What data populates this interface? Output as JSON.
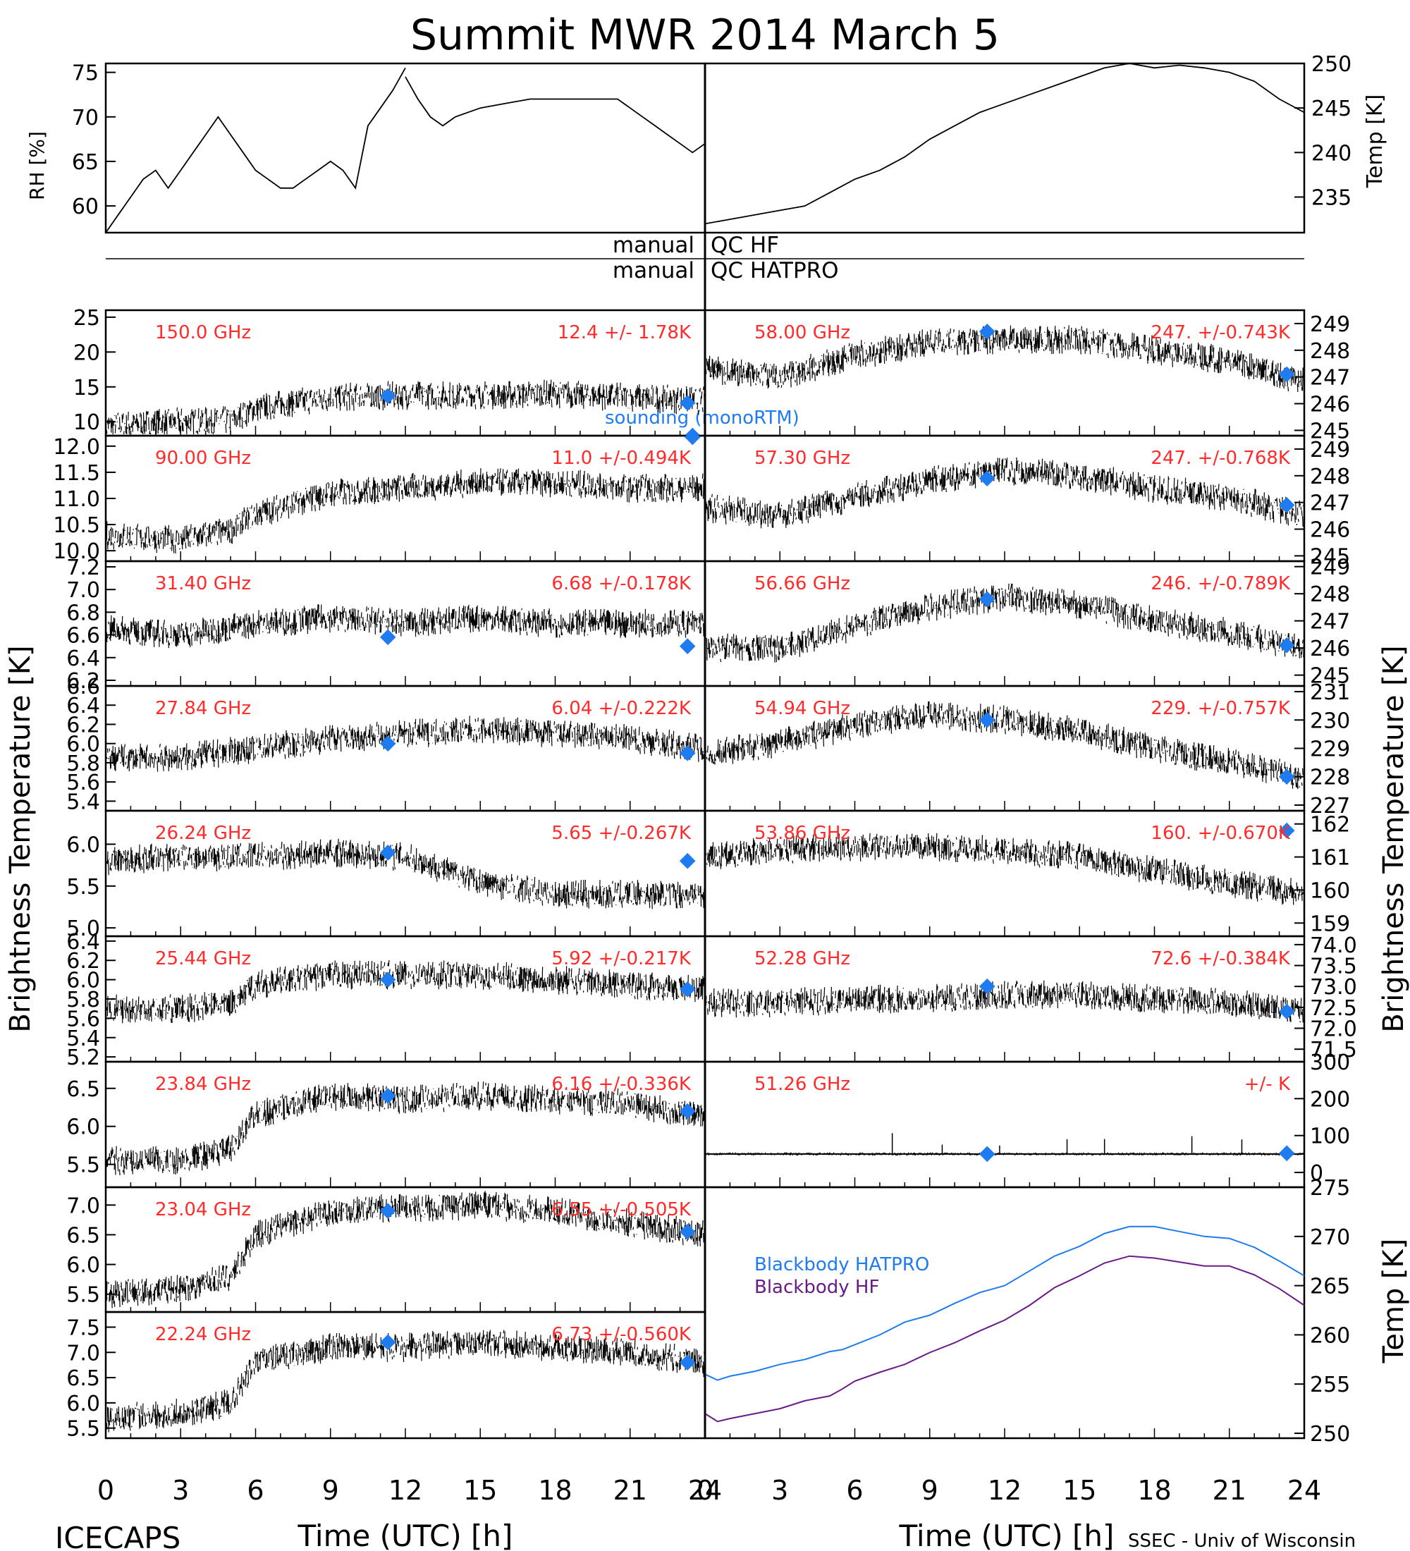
{
  "title": "Summit MWR 2014 March  5",
  "footer": {
    "left": "ICECAPS",
    "right": "SSEC - Univ of Wisconsin"
  },
  "colors": {
    "label": "#ff2a2a",
    "sounding": "#1f7cf0",
    "hatpro": "#1f7cf0",
    "hf": "#6b1a8a",
    "data": "#000000"
  },
  "qc": {
    "label_left": "manual",
    "row1": "QC HF",
    "row2": "QC HATPRO"
  },
  "axes": {
    "left_ylabel": "Brightness Temperature [K]",
    "right_ylabel": "Brightness Temperature [K]",
    "xlabel": "Time (UTC) [h]",
    "xticks": [
      "0",
      "3",
      "6",
      "9",
      "12",
      "15",
      "18",
      "21",
      "24"
    ]
  },
  "legend": {
    "sounding": "sounding (monoRTM)",
    "bb_hatpro": "Blackbody HATPRO",
    "bb_hf": "Blackbody HF"
  },
  "chart_data": [
    {
      "type": "line",
      "panel": "rh",
      "ylabel": "RH [%]",
      "ylim": [
        57,
        76
      ],
      "yticks": [
        "60",
        "65",
        "70",
        "75"
      ],
      "xlim": [
        0,
        12
      ],
      "series": [
        {
          "x": [
            0,
            0.5,
            1,
            1.5,
            2,
            2.5,
            3,
            3.5,
            4,
            4.5,
            5,
            5.5,
            6,
            6.5,
            7,
            7.5,
            8,
            8.5,
            9,
            9.5,
            10,
            10.5,
            11,
            11.5,
            12
          ],
          "y": [
            57,
            59,
            61,
            63,
            64,
            62,
            64,
            66,
            68,
            70,
            68,
            66,
            64,
            63,
            62,
            62,
            63,
            64,
            65,
            64,
            62,
            69,
            71,
            73,
            75.5
          ]
        }
      ]
    },
    {
      "type": "line",
      "panel": "rh2",
      "ylabel": "",
      "ylim": [
        57,
        76
      ],
      "xlim": [
        12,
        24
      ],
      "series": [
        {
          "x": [
            12,
            12.5,
            13,
            13.5,
            14,
            15,
            16,
            17,
            18,
            19,
            20,
            20.5,
            21,
            21.5,
            22,
            22.5,
            23,
            23.5,
            24
          ],
          "y": [
            74.5,
            72,
            70,
            69,
            70,
            71,
            71.5,
            72,
            72,
            72,
            72,
            72,
            71,
            70,
            69,
            68,
            67,
            66,
            67
          ]
        }
      ]
    },
    {
      "type": "line",
      "panel": "temp",
      "ylabel": "Temp [K]",
      "ylim": [
        231,
        250
      ],
      "yticks": [
        "235",
        "240",
        "245",
        "250"
      ],
      "xlim": [
        0,
        24
      ],
      "series": [
        {
          "x": [
            0,
            1,
            2,
            3,
            4,
            5,
            6,
            7,
            8,
            9,
            10,
            11,
            12,
            13,
            14,
            15,
            16,
            17,
            18,
            19,
            20,
            21,
            22,
            23,
            24
          ],
          "y": [
            232,
            232.5,
            233,
            233.5,
            234,
            235.5,
            237,
            238,
            239.5,
            241.5,
            243,
            244.5,
            245.5,
            246.5,
            247.5,
            248.5,
            249.5,
            250,
            249.5,
            249.8,
            249.5,
            249,
            248,
            246,
            244.5
          ]
        }
      ]
    },
    {
      "type": "scatter",
      "panel": "c150",
      "label": "150.0 GHz",
      "stats": "12.4 +/-  1.78K",
      "ylim": [
        8,
        26
      ],
      "yticks": [
        "10",
        "15",
        "20",
        "25"
      ],
      "x": [
        0,
        3,
        5,
        6,
        9,
        12,
        15,
        18,
        21,
        24
      ],
      "y": [
        9.5,
        10,
        10.2,
        12,
        13.5,
        13.8,
        13.8,
        14,
        13.5,
        13
      ],
      "sounding": [
        {
          "x": 11.3,
          "y": 13.7
        },
        {
          "x": 23.3,
          "y": 12.7
        },
        {
          "x": 23.5,
          "y": 7.5
        }
      ]
    },
    {
      "type": "scatter",
      "panel": "c90",
      "label": "90.00 GHz",
      "stats": "11.0 +/-0.494K",
      "ylim": [
        9.8,
        12.2
      ],
      "yticks": [
        "10.0",
        "10.5",
        "11.0",
        "11.5",
        "12.0"
      ],
      "x": [
        0,
        3,
        5,
        6,
        9,
        12,
        15,
        18,
        21,
        24
      ],
      "y": [
        10.3,
        10.2,
        10.4,
        10.7,
        11.1,
        11.2,
        11.3,
        11.3,
        11.2,
        11.2
      ],
      "sounding": [
        {
          "x": 23.5,
          "y": 12.2
        }
      ]
    },
    {
      "type": "scatter",
      "panel": "c31",
      "label": "31.40 GHz",
      "stats": "6.68 +/-0.178K",
      "ylim": [
        6.15,
        7.25
      ],
      "yticks": [
        "6.2",
        "6.4",
        "6.6",
        "6.8",
        "7.0",
        "7.2"
      ],
      "x": [
        0,
        3,
        6,
        9,
        12,
        15,
        18,
        21,
        24
      ],
      "y": [
        6.65,
        6.6,
        6.7,
        6.75,
        6.7,
        6.75,
        6.7,
        6.7,
        6.7
      ],
      "sounding": [
        {
          "x": 11.3,
          "y": 6.58
        },
        {
          "x": 23.3,
          "y": 6.5
        }
      ]
    },
    {
      "type": "scatter",
      "panel": "c27",
      "label": "27.84 GHz",
      "stats": "6.04 +/-0.222K",
      "ylim": [
        5.3,
        6.6
      ],
      "yticks": [
        "5.4",
        "5.6",
        "5.8",
        "6.0",
        "6.2",
        "6.4",
        "6.6"
      ],
      "x": [
        0,
        3,
        6,
        9,
        12,
        15,
        18,
        21,
        24
      ],
      "y": [
        5.85,
        5.85,
        5.95,
        6.05,
        6.1,
        6.15,
        6.1,
        6.05,
        5.95
      ],
      "sounding": [
        {
          "x": 11.3,
          "y": 6.0
        },
        {
          "x": 23.3,
          "y": 5.9
        }
      ]
    },
    {
      "type": "scatter",
      "panel": "c26",
      "label": "26.24 GHz",
      "stats": "5.65 +/-0.267K",
      "ylim": [
        4.9,
        6.4
      ],
      "yticks": [
        "5.0",
        "5.5",
        "6.0"
      ],
      "x": [
        0,
        3,
        6,
        9,
        12,
        15,
        18,
        21,
        24
      ],
      "y": [
        5.8,
        5.85,
        5.85,
        5.9,
        5.85,
        5.55,
        5.4,
        5.4,
        5.4
      ],
      "sounding": [
        {
          "x": 11.3,
          "y": 5.9
        },
        {
          "x": 23.3,
          "y": 5.8
        }
      ]
    },
    {
      "type": "scatter",
      "panel": "c25",
      "label": "25.44 GHz",
      "stats": "5.92 +/-0.217K",
      "ylim": [
        5.15,
        6.45
      ],
      "yticks": [
        "5.2",
        "5.4",
        "5.6",
        "5.8",
        "6.0",
        "6.2",
        "6.4"
      ],
      "x": [
        0,
        3,
        5,
        6,
        9,
        12,
        15,
        18,
        21,
        24
      ],
      "y": [
        5.7,
        5.7,
        5.75,
        5.95,
        6.05,
        6.05,
        6.05,
        6.0,
        5.95,
        5.9
      ],
      "sounding": [
        {
          "x": 11.3,
          "y": 6.0
        },
        {
          "x": 23.3,
          "y": 5.9
        }
      ]
    },
    {
      "type": "scatter",
      "panel": "c23a",
      "label": "23.84 GHz",
      "stats": "6.16 +/-0.336K",
      "ylim": [
        5.2,
        6.85
      ],
      "yticks": [
        "5.5",
        "6.0",
        "6.5"
      ],
      "x": [
        0,
        3,
        5,
        6,
        9,
        12,
        15,
        18,
        21,
        24
      ],
      "y": [
        5.55,
        5.55,
        5.7,
        6.15,
        6.4,
        6.35,
        6.4,
        6.35,
        6.3,
        6.1
      ],
      "sounding": [
        {
          "x": 11.3,
          "y": 6.4
        },
        {
          "x": 23.3,
          "y": 6.2
        }
      ]
    },
    {
      "type": "scatter",
      "panel": "c23b",
      "label": "23.04 GHz",
      "stats": "6.55 +/-0.505K",
      "ylim": [
        5.2,
        7.3
      ],
      "yticks": [
        "5.5",
        "6.0",
        "6.5",
        "7.0"
      ],
      "x": [
        0,
        3,
        5,
        6,
        9,
        12,
        15,
        18,
        21,
        24
      ],
      "y": [
        5.5,
        5.6,
        5.8,
        6.5,
        6.9,
        6.95,
        7.0,
        6.9,
        6.7,
        6.5
      ],
      "sounding": [
        {
          "x": 11.3,
          "y": 6.9
        },
        {
          "x": 23.3,
          "y": 6.55
        }
      ]
    },
    {
      "type": "scatter",
      "panel": "c22",
      "label": "22.24 GHz",
      "stats": "6.73 +/-0.560K",
      "ylim": [
        5.3,
        7.8
      ],
      "yticks": [
        "5.5",
        "6.0",
        "6.5",
        "7.0",
        "7.5"
      ],
      "x": [
        0,
        3,
        5,
        6,
        9,
        12,
        15,
        18,
        21,
        24
      ],
      "y": [
        5.7,
        5.8,
        6.0,
        6.8,
        7.1,
        7.1,
        7.2,
        7.1,
        7.0,
        6.8
      ],
      "sounding": [
        {
          "x": 11.3,
          "y": 7.2
        },
        {
          "x": 23.3,
          "y": 6.8
        }
      ]
    },
    {
      "type": "scatter",
      "panel": "c58",
      "label": "58.00 GHz",
      "stats": "247. +/-0.743K",
      "ylim": [
        244.8,
        249.5
      ],
      "yticks": [
        "245",
        "246",
        "247",
        "248",
        "249"
      ],
      "x": [
        0,
        3,
        6,
        9,
        12,
        15,
        18,
        21,
        24
      ],
      "y": [
        247.3,
        247.0,
        247.8,
        248.3,
        248.4,
        248.4,
        248.0,
        247.6,
        246.8
      ],
      "sounding": [
        {
          "x": 11.3,
          "y": 248.7
        },
        {
          "x": 23.3,
          "y": 247.1
        }
      ]
    },
    {
      "type": "scatter",
      "panel": "c57",
      "label": "57.30 GHz",
      "stats": "247. +/-0.768K",
      "ylim": [
        244.8,
        249.5
      ],
      "yticks": [
        "245",
        "246",
        "247",
        "248",
        "249"
      ],
      "x": [
        0,
        3,
        6,
        9,
        12,
        15,
        18,
        21,
        24
      ],
      "y": [
        246.8,
        246.5,
        247.2,
        247.8,
        248.2,
        248.0,
        247.5,
        247.2,
        246.5
      ],
      "sounding": [
        {
          "x": 11.3,
          "y": 247.9
        },
        {
          "x": 23.3,
          "y": 246.9
        }
      ]
    },
    {
      "type": "scatter",
      "panel": "c56",
      "label": "56.66 GHz",
      "stats": "246. +/-0.789K",
      "ylim": [
        244.6,
        249.2
      ],
      "yticks": [
        "245",
        "246",
        "247",
        "248",
        "249"
      ],
      "x": [
        0,
        3,
        6,
        9,
        12,
        15,
        18,
        21,
        24
      ],
      "y": [
        246.0,
        246.0,
        246.8,
        247.5,
        247.9,
        247.6,
        247.0,
        246.6,
        246.0
      ],
      "sounding": [
        {
          "x": 11.3,
          "y": 247.8
        },
        {
          "x": 23.3,
          "y": 246.1
        }
      ]
    },
    {
      "type": "scatter",
      "panel": "c54",
      "label": "54.94 GHz",
      "stats": "229. +/-0.757K",
      "ylim": [
        226.8,
        231.2
      ],
      "yticks": [
        "227",
        "228",
        "229",
        "230",
        "231"
      ],
      "x": [
        0,
        3,
        6,
        9,
        12,
        15,
        18,
        21,
        24
      ],
      "y": [
        228.8,
        229.2,
        229.8,
        230.2,
        230.0,
        229.6,
        229.0,
        228.5,
        228.0
      ],
      "sounding": [
        {
          "x": 11.3,
          "y": 230.0
        },
        {
          "x": 23.3,
          "y": 228.0
        }
      ]
    },
    {
      "type": "scatter",
      "panel": "c53",
      "label": "53.86 GHz",
      "stats": "160. +/-0.670K",
      "ylim": [
        158.6,
        162.4
      ],
      "yticks": [
        "159",
        "160",
        "161",
        "162"
      ],
      "x": [
        0,
        3,
        6,
        9,
        12,
        15,
        18,
        21,
        24
      ],
      "y": [
        161.0,
        161.2,
        161.3,
        161.3,
        161.2,
        161.0,
        160.6,
        160.2,
        159.9
      ],
      "sounding": [
        {
          "x": 23.3,
          "y": 161.8
        }
      ]
    },
    {
      "type": "scatter",
      "panel": "c52",
      "label": "52.28 GHz",
      "stats": "72.6 +/-0.384K",
      "ylim": [
        71.2,
        74.2
      ],
      "yticks": [
        "71.5",
        "72.0",
        "72.5",
        "73.0",
        "73.5",
        "74.0"
      ],
      "x": [
        0,
        3,
        6,
        9,
        12,
        15,
        18,
        21,
        24
      ],
      "y": [
        72.6,
        72.6,
        72.7,
        72.7,
        72.8,
        72.8,
        72.7,
        72.6,
        72.4
      ],
      "sounding": [
        {
          "x": 11.3,
          "y": 73.0
        },
        {
          "x": 23.3,
          "y": 72.4
        }
      ]
    },
    {
      "type": "scatter",
      "panel": "c51",
      "label": "51.26 GHz",
      "stats": "+/-      K",
      "ylim": [
        -40,
        300
      ],
      "yticks": [
        "0",
        "100",
        "200",
        "300"
      ],
      "x": [
        0,
        6,
        12,
        18,
        24
      ],
      "y": [
        50,
        50,
        50,
        50,
        50
      ],
      "sounding": [
        {
          "x": 11.3,
          "y": 50
        },
        {
          "x": 23.3,
          "y": 52
        }
      ]
    },
    {
      "type": "line",
      "panel": "bb",
      "ylabel": "Temp [K]",
      "ylim": [
        249.5,
        275
      ],
      "yticks": [
        "250",
        "255",
        "260",
        "265",
        "270",
        "275"
      ],
      "xlim": [
        0,
        24
      ],
      "series": [
        {
          "name": "Blackbody HATPRO",
          "x": [
            0,
            0.5,
            1,
            2,
            3,
            4,
            5,
            5.5,
            6,
            7,
            8,
            9,
            10,
            11,
            12,
            13,
            14,
            15,
            16,
            17,
            18,
            19,
            20,
            21,
            22,
            23,
            24
          ],
          "y": [
            256,
            255.4,
            255.8,
            256.3,
            257,
            257.5,
            258.3,
            258.5,
            259,
            260,
            261.3,
            262,
            263.2,
            264.3,
            265,
            266.5,
            268,
            269,
            270.3,
            271,
            271,
            270.5,
            270,
            269.8,
            268.9,
            267.5,
            266
          ]
        },
        {
          "name": "Blackbody HF",
          "x": [
            0,
            0.5,
            1,
            2,
            3,
            4,
            5,
            5.5,
            6,
            7,
            8,
            9,
            10,
            11,
            12,
            13,
            14,
            15,
            16,
            17,
            18,
            19,
            20,
            21,
            22,
            23,
            24
          ],
          "y": [
            252,
            251.2,
            251.5,
            252,
            252.5,
            253.3,
            253.8,
            254.5,
            255.3,
            256.2,
            257,
            258.2,
            259.2,
            260.4,
            261.5,
            263,
            264.8,
            266,
            267.3,
            268,
            267.8,
            267.4,
            267,
            267,
            266.1,
            264.7,
            263
          ]
        }
      ]
    }
  ]
}
